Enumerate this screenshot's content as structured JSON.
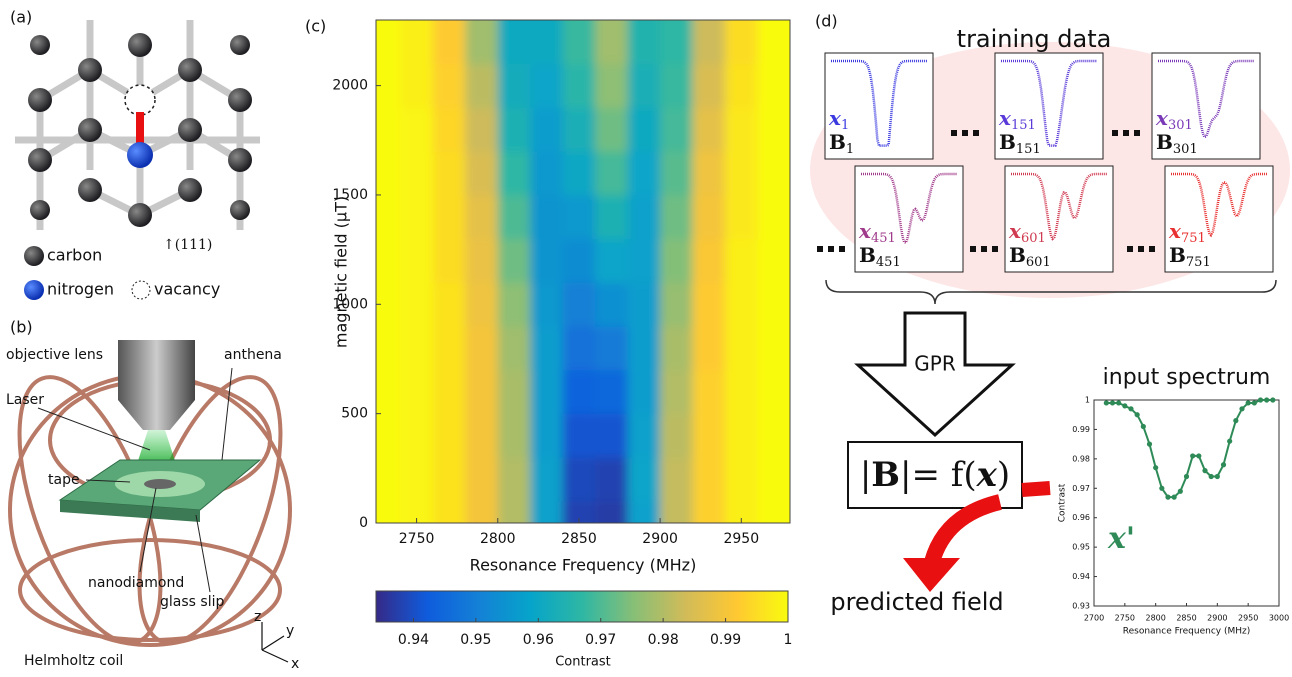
{
  "panel_a": {
    "label": "(a)",
    "legend": [
      "carbon",
      "nitrogen",
      "vacancy"
    ],
    "direction": "↑(111)"
  },
  "panel_b": {
    "label": "(b)",
    "parts": [
      "objective lens",
      "anthena",
      "Laser",
      "tape",
      "nanodiamond",
      "glass slip",
      "Helmholtz coil"
    ],
    "axes": [
      "z",
      "y",
      "x"
    ]
  },
  "panel_d": {
    "label": "(d)",
    "training_title": "training data",
    "thumbnails": [
      {
        "x": "x",
        "x_sub": "1",
        "b": "B",
        "b_sub": "1",
        "color": "#3a3ae0"
      },
      {
        "x": "x",
        "x_sub": "151",
        "b": "B",
        "b_sub": "151",
        "color": "#5a3ad8"
      },
      {
        "x": "x",
        "x_sub": "301",
        "b": "B",
        "b_sub": "301",
        "color": "#7a3ab8"
      },
      {
        "x": "x",
        "x_sub": "451",
        "b": "B",
        "b_sub": "451",
        "color": "#a03a8a"
      },
      {
        "x": "x",
        "x_sub": "601",
        "b": "B",
        "b_sub": "601",
        "color": "#d03a50"
      },
      {
        "x": "x",
        "x_sub": "751",
        "b": "B",
        "b_sub": "751",
        "color": "#e83030"
      }
    ],
    "method": "GPR",
    "formula": [
      "|",
      "B",
      "|= f(",
      "x",
      ")"
    ],
    "output": "predicted field"
  },
  "chart_data": [
    {
      "type": "heatmap",
      "panel_label": "(c)",
      "xlabel": "Resonance Frequency (MHz)",
      "ylabel": "magnetic field (μT)",
      "xlim": [
        2725,
        2980
      ],
      "xticks": [
        2750,
        2800,
        2850,
        2900,
        2950
      ],
      "ylim": [
        0,
        2300
      ],
      "yticks": [
        0,
        500,
        1000,
        1500,
        2000
      ],
      "x": [
        2730,
        2750,
        2770,
        2790,
        2810,
        2830,
        2850,
        2870,
        2890,
        2910,
        2930,
        2950,
        2970
      ],
      "y": [
        0,
        200,
        400,
        600,
        800,
        1000,
        1200,
        1400,
        1600,
        1800,
        2000,
        2200
      ],
      "z": [
        [
          1,
          0.999,
          0.996,
          0.99,
          0.98,
          0.958,
          0.938,
          0.937,
          0.958,
          0.982,
          0.993,
          0.998,
          1
        ],
        [
          1,
          0.999,
          0.996,
          0.99,
          0.98,
          0.958,
          0.939,
          0.938,
          0.959,
          0.982,
          0.993,
          0.998,
          1
        ],
        [
          1,
          0.999,
          0.996,
          0.99,
          0.979,
          0.957,
          0.941,
          0.941,
          0.958,
          0.981,
          0.993,
          0.998,
          1
        ],
        [
          1,
          0.999,
          0.996,
          0.99,
          0.979,
          0.957,
          0.944,
          0.945,
          0.957,
          0.98,
          0.993,
          0.998,
          1
        ],
        [
          1,
          0.999,
          0.996,
          0.99,
          0.978,
          0.957,
          0.947,
          0.949,
          0.957,
          0.979,
          0.992,
          0.998,
          1
        ],
        [
          1,
          0.999,
          0.996,
          0.989,
          0.976,
          0.956,
          0.95,
          0.954,
          0.957,
          0.977,
          0.992,
          0.998,
          1
        ],
        [
          1,
          0.999,
          0.995,
          0.988,
          0.973,
          0.955,
          0.953,
          0.959,
          0.958,
          0.975,
          0.991,
          0.998,
          1
        ],
        [
          1,
          0.999,
          0.995,
          0.987,
          0.97,
          0.955,
          0.956,
          0.964,
          0.958,
          0.973,
          0.99,
          0.997,
          1
        ],
        [
          1,
          0.999,
          0.995,
          0.985,
          0.967,
          0.956,
          0.96,
          0.969,
          0.959,
          0.971,
          0.989,
          0.997,
          1
        ],
        [
          1,
          0.999,
          0.994,
          0.983,
          0.964,
          0.957,
          0.963,
          0.973,
          0.961,
          0.969,
          0.987,
          0.997,
          1
        ],
        [
          1,
          0.998,
          0.993,
          0.981,
          0.962,
          0.959,
          0.966,
          0.976,
          0.963,
          0.968,
          0.985,
          0.996,
          1
        ],
        [
          1,
          0.998,
          0.992,
          0.978,
          0.961,
          0.961,
          0.968,
          0.978,
          0.965,
          0.967,
          0.983,
          0.995,
          1
        ]
      ],
      "colorbar_label": "Contrast",
      "clim": [
        0.934,
        1
      ],
      "cticks": [
        0.94,
        0.95,
        0.96,
        0.97,
        0.98,
        0.99,
        1
      ],
      "colormap": [
        "#352a87",
        "#0f5cdd",
        "#1481d6",
        "#06a4ca",
        "#2eb7a4",
        "#87bf77",
        "#d1bb59",
        "#fec832",
        "#f9fb0e"
      ]
    },
    {
      "type": "line",
      "title": "input spectrum",
      "xlabel": "Resonance Frequency (MHz)",
      "ylabel": "Contrast",
      "xlim": [
        2700,
        3000
      ],
      "xticks": [
        2700,
        2750,
        2800,
        2850,
        2900,
        2950,
        3000
      ],
      "ylim": [
        0.93,
        1
      ],
      "yticks": [
        0.93,
        0.94,
        0.95,
        0.96,
        0.97,
        0.98,
        0.99,
        1
      ],
      "x": [
        2720,
        2730,
        2740,
        2750,
        2760,
        2770,
        2780,
        2790,
        2800,
        2810,
        2820,
        2830,
        2840,
        2850,
        2860,
        2870,
        2880,
        2890,
        2900,
        2910,
        2920,
        2930,
        2940,
        2950,
        2960,
        2970,
        2980,
        2990
      ],
      "series": [
        {
          "name": "x'",
          "color": "#2e8b57",
          "values": [
            0.999,
            0.999,
            0.999,
            0.998,
            0.997,
            0.995,
            0.991,
            0.985,
            0.977,
            0.97,
            0.967,
            0.967,
            0.969,
            0.974,
            0.981,
            0.981,
            0.976,
            0.974,
            0.974,
            0.978,
            0.986,
            0.993,
            0.997,
            0.999,
            0.999,
            1,
            1,
            1
          ]
        }
      ]
    }
  ]
}
